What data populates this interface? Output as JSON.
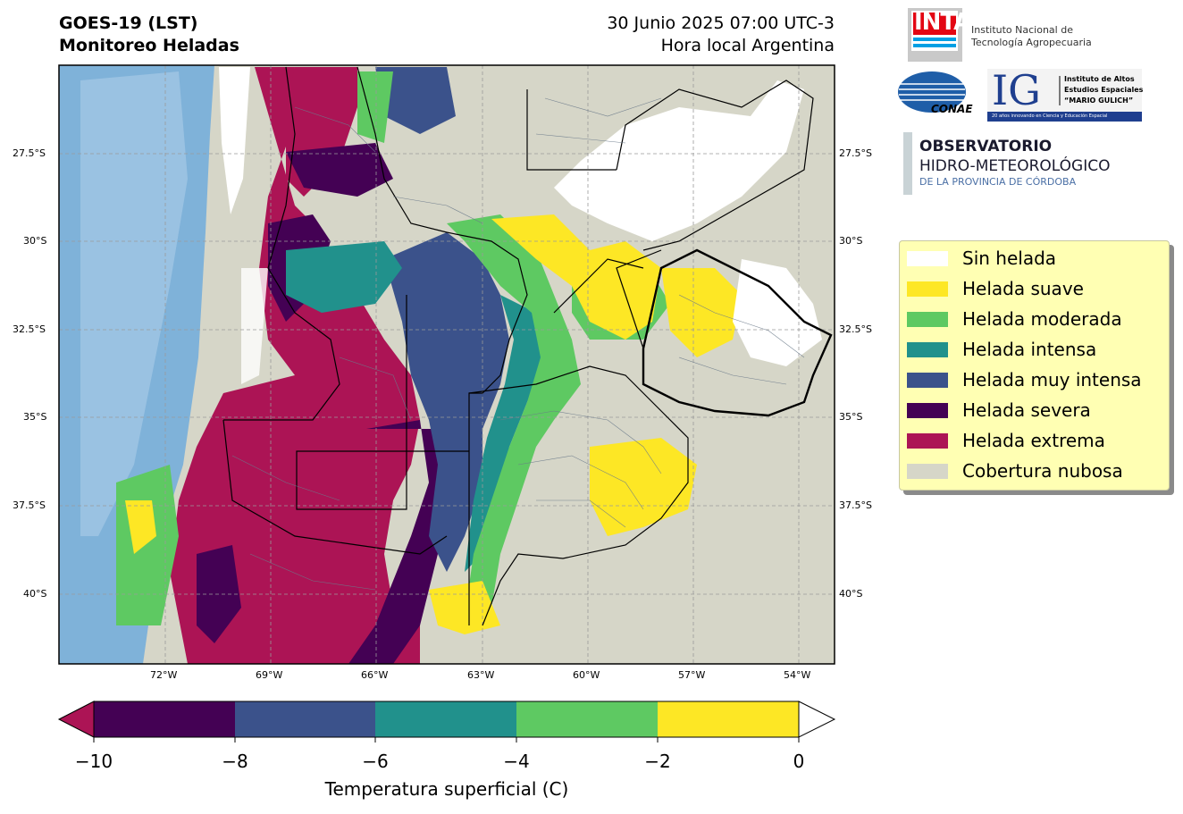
{
  "header": {
    "title_line1": "GOES-19 (LST)",
    "title_line2": "Monitoreo Heladas",
    "date_line1": "30 Junio 2025 07:00 UTC-3",
    "date_line2": "Hora local Argentina"
  },
  "map": {
    "lat_ticks": [
      "27.5°S",
      "30°S",
      "32.5°S",
      "35°S",
      "37.5°S",
      "40°S"
    ],
    "lon_ticks": [
      "72°W",
      "69°W",
      "66°W",
      "63°W",
      "60°W",
      "57°W",
      "54°W"
    ],
    "lat_values": [
      -27.5,
      -30,
      -32.5,
      -35,
      -37.5,
      -40
    ],
    "lon_values": [
      -72,
      -69,
      -66,
      -63,
      -60,
      -57,
      -54
    ],
    "extent": {
      "lon_min": -75,
      "lon_max": -53,
      "lat_min": -42,
      "lat_max": -25
    },
    "gridlines": true
  },
  "legend": {
    "items": [
      {
        "label": "Sin helada",
        "color": "#ffffff"
      },
      {
        "label": "Helada suave",
        "color": "#fde725"
      },
      {
        "label": "Helada moderada",
        "color": "#5ec962"
      },
      {
        "label": "Helada intensa",
        "color": "#21918c"
      },
      {
        "label": "Helada muy intensa",
        "color": "#3b528b"
      },
      {
        "label": "Helada severa",
        "color": "#440154"
      },
      {
        "label": "Helada extrema",
        "color": "#ac1455"
      },
      {
        "label": "Cobertura nubosa",
        "color": "#d6d6c8"
      }
    ]
  },
  "colorbar": {
    "ticks": [
      "−10",
      "−8",
      "−6",
      "−4",
      "−2",
      "0"
    ],
    "tick_values": [
      -10,
      -8,
      -6,
      -4,
      -2,
      0
    ],
    "colors": [
      "#440154",
      "#3b528b",
      "#21918c",
      "#5ec962",
      "#fde725"
    ],
    "under_color": "#ac1455",
    "over_color": "#ffffff",
    "label": "Temperatura superficial (C)"
  },
  "logos": {
    "inta": "INTA",
    "inta_text1": "Instituto Nacional de",
    "inta_text2": "Tecnología Agropecuaria",
    "conae": "CONAE",
    "ig": "IG",
    "ig_text1": "Instituto de Altos",
    "ig_text2": "Estudios Espaciales",
    "ig_text3": "“MARIO GULICH”",
    "ig_sub": "20 años innovando en Ciencia y Educación Espacial",
    "obs_text1": "OBSERVATORIO",
    "obs_text2": "HIDRO-METEOROLÓGICO",
    "obs_text3": "DE LA PROVINCIA DE CÓRDOBA"
  }
}
